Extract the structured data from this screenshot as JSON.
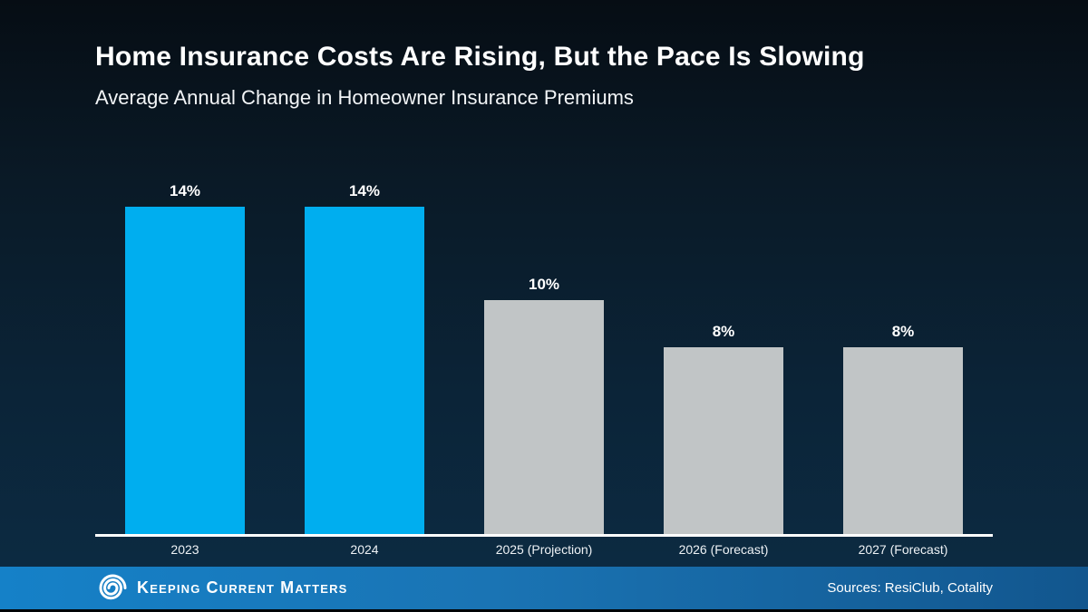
{
  "header": {
    "title": "Home Insurance Costs Are Rising, But the Pace Is Slowing",
    "subtitle": "Average Annual Change in Homeowner Insurance Premiums"
  },
  "chart_data": {
    "type": "bar",
    "title": "Home Insurance Costs Are Rising, But the Pace Is Slowing",
    "subtitle": "Average Annual Change in Homeowner Insurance Premiums",
    "categories": [
      "2023",
      "2024",
      "2025 (Projection)",
      "2026 (Forecast)",
      "2027 (Forecast)"
    ],
    "values": [
      14,
      14,
      10,
      8,
      8
    ],
    "labels": [
      "14%",
      "14%",
      "10%",
      "8%",
      "8%"
    ],
    "unit": "percent",
    "ylim": [
      0,
      14
    ],
    "grid": false,
    "legend": false,
    "bar_colors": [
      "#00AEEF",
      "#00AEEF",
      "#C1C5C6",
      "#C1C5C6",
      "#C1C5C6"
    ],
    "axis_line_color": "#FFFFFF"
  },
  "colors": {
    "background_top": "#060d14",
    "background_bottom": "#0c2c44",
    "accent_blue": "#00AEEF",
    "neutral_gray": "#C1C5C6",
    "footer_left": "#1581c8",
    "footer_right": "#12568e"
  },
  "footer": {
    "brand_words": [
      {
        "lead": "K",
        "rest": "EEPING"
      },
      {
        "lead": "C",
        "rest": "URRENT"
      },
      {
        "lead": "M",
        "rest": "ATTERS"
      }
    ],
    "sources": "Sources: ResiClub, Cotality"
  }
}
